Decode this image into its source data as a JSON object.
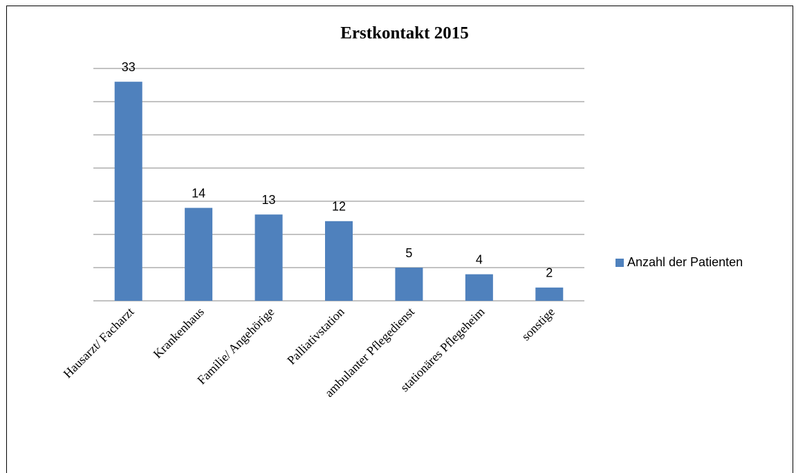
{
  "chart_data": {
    "type": "bar",
    "title": "Erstkontakt 2015",
    "categories": [
      "Hausarzt/ Facharzt",
      "Krankenhaus",
      "Familie/ Angehörige",
      "Palliativstation",
      "ambulanter Pflegedienst",
      "stationäres Pflegeheim",
      "sonstige"
    ],
    "series": [
      {
        "name": "Anzahl der Patienten",
        "color": "#4f81bd",
        "values": [
          33,
          14,
          13,
          12,
          5,
          4,
          2
        ]
      }
    ],
    "ylim": [
      0,
      35
    ],
    "yticks": [
      0,
      5,
      10,
      15,
      20,
      25,
      30,
      35
    ],
    "grid": true,
    "legend": "right"
  }
}
